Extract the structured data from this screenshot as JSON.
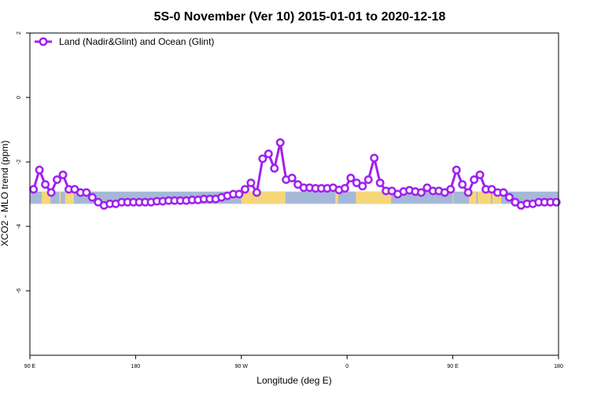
{
  "chart_data": {
    "type": "line",
    "title": "5S-0 November (Ver 10)   2015-01-01 to 2020-12-18",
    "xlabel": "Longitude (deg E)",
    "ylabel": "XCO2 - MLO trend (ppm)",
    "xlim": [
      90,
      450
    ],
    "ylim": [
      -8,
      2
    ],
    "x_ticks": [
      {
        "value": 90,
        "label": "90 E"
      },
      {
        "value": 162,
        "label": "180"
      },
      {
        "value": 234,
        "label": "90 W"
      },
      {
        "value": 306,
        "label": "0"
      },
      {
        "value": 378,
        "label": "90 E"
      },
      {
        "value": 450,
        "label": "180"
      }
    ],
    "y_ticks": [
      {
        "value": 2,
        "label": "2"
      },
      {
        "value": 0,
        "label": "0"
      },
      {
        "value": -2,
        "label": "-2"
      },
      {
        "value": -4,
        "label": "-4"
      },
      {
        "value": -6,
        "label": "-6"
      }
    ],
    "grid": false,
    "legend_position": "top-left",
    "series": [
      {
        "name": "Land (Nadir&Glint) and Ocean (Glint)",
        "color": "#a020f0",
        "x": [
          92.5,
          96.5,
          100.5,
          104.5,
          108.5,
          112.5,
          116.5,
          120.5,
          124.5,
          128.5,
          132.5,
          136.5,
          140.5,
          144.5,
          148.5,
          152.5,
          156.5,
          160.5,
          164.5,
          168.5,
          172.5,
          176.5,
          180.5,
          184.5,
          188.5,
          192.5,
          196.5,
          200.5,
          204.5,
          208.5,
          212.5,
          216.5,
          220.5,
          224.5,
          228.5,
          232.5,
          236.5,
          240.5,
          244.5,
          248.5,
          252.5,
          256.5,
          260.5,
          264.5,
          268.5,
          272.5,
          276.5,
          280.5,
          284.5,
          288.5,
          292.5,
          296.5,
          300.5,
          304.5,
          308.5,
          312.5,
          316.5,
          320.5,
          324.5,
          328.5,
          332.5,
          336.5,
          340.5,
          344.5,
          348.5,
          352.5,
          356.5,
          360.5,
          364.5,
          368.5,
          372.5,
          376.5,
          380.5,
          384.5,
          388.5,
          392.5,
          396.5,
          400.5,
          404.5,
          408.5,
          412.5,
          416.5,
          420.5,
          424.5,
          428.5,
          432.5,
          436.5,
          440.5,
          444.5,
          448.5
        ],
        "y": [
          -2.85,
          -2.25,
          -2.7,
          -2.95,
          -2.55,
          -2.4,
          -2.85,
          -2.85,
          -2.95,
          -2.95,
          -3.1,
          -3.25,
          -3.35,
          -3.3,
          -3.3,
          -3.25,
          -3.25,
          -3.25,
          -3.25,
          -3.25,
          -3.25,
          -3.22,
          -3.22,
          -3.2,
          -3.2,
          -3.2,
          -3.2,
          -3.18,
          -3.18,
          -3.15,
          -3.15,
          -3.15,
          -3.1,
          -3.05,
          -3.0,
          -3.0,
          -2.85,
          -2.65,
          -2.95,
          -1.9,
          -1.75,
          -2.2,
          -1.4,
          -2.55,
          -2.5,
          -2.7,
          -2.8,
          -2.8,
          -2.82,
          -2.82,
          -2.82,
          -2.8,
          -2.87,
          -2.82,
          -2.5,
          -2.65,
          -2.75,
          -2.55,
          -1.88,
          -2.65,
          -2.9,
          -2.9,
          -3.0,
          -2.92,
          -2.88,
          -2.92,
          -2.95,
          -2.8,
          -2.9,
          -2.9,
          -2.95,
          -2.85,
          -2.25,
          -2.7,
          -2.95,
          -2.55,
          -2.4,
          -2.85,
          -2.85,
          -2.95,
          -2.95,
          -3.1,
          -3.25,
          -3.35,
          -3.3,
          -3.3,
          -3.25,
          -3.25,
          -3.25,
          -3.25
        ]
      }
    ],
    "background_band": {
      "y_range": [
        -3.3,
        -2.92
      ],
      "ocean_color": "#a5b8d8",
      "land_color": "#f5d77a",
      "land_segments": [
        [
          98,
          104
        ],
        [
          110,
          111
        ],
        [
          114,
          120
        ],
        [
          234,
          264
        ],
        [
          298,
          300
        ],
        [
          312,
          336
        ],
        [
          378,
          378.5
        ],
        [
          389,
          394
        ],
        [
          395,
          404
        ],
        [
          405,
          411
        ]
      ]
    }
  }
}
